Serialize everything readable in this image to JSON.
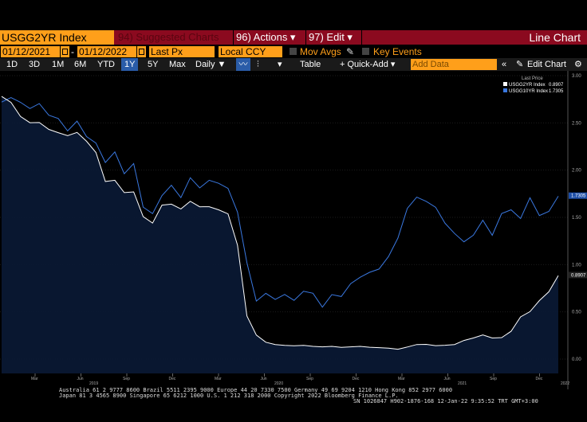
{
  "toolbar1": {
    "ticker": "USGG2YR Index",
    "suggested": "94) Suggested Charts",
    "actions": "96) Actions ▾",
    "edit": "97) Edit ▾",
    "chart_type": "Line Chart"
  },
  "toolbar2": {
    "start_date": "01/12/2021",
    "dash": "-",
    "end_date": "01/12/2022",
    "field": "Last Px",
    "currency": "Local CCY",
    "mov_avgs": "Mov Avgs",
    "key_events": "Key Events"
  },
  "toolbar3": {
    "periods": [
      "1D",
      "3D",
      "1M",
      "6M",
      "YTD",
      "1Y",
      "5Y",
      "Max"
    ],
    "selected_period": "1Y",
    "frequency": "Daily ▼",
    "table": "Table",
    "quick_add": "+ Quick-Add ▾",
    "add_data_placeholder": "Add Data",
    "edit_chart": "Edit Chart"
  },
  "legend": {
    "header": "Last Price",
    "items": [
      {
        "name": "USGG2YR Index",
        "value": "0.8907",
        "color": "#ffffff"
      },
      {
        "name": "USGG10YR Index",
        "value": "1.7305",
        "color": "#3a78e0"
      }
    ]
  },
  "chart_data": {
    "type": "line",
    "y_ticks": [
      "3.00",
      "2.50",
      "2.00",
      "1.50",
      "1.00",
      "0.50",
      "0.00"
    ],
    "ylim": [
      0,
      3
    ],
    "last_labels": [
      "1.7305",
      "0.8907"
    ],
    "x_month_labels": [
      "Mar",
      "Jun",
      "Sep",
      "Dec",
      "Mar",
      "Jun",
      "Sep",
      "Dec",
      "Mar",
      "Jun",
      "Sep",
      "Dec"
    ],
    "x_year_labels": [
      "2019",
      "2020",
      "2021",
      "2022"
    ],
    "series": [
      {
        "name": "USGG10YR Index",
        "color": "#3a78e0",
        "values": [
          2.72,
          2.75,
          2.7,
          2.65,
          2.72,
          2.6,
          2.55,
          2.4,
          2.5,
          2.35,
          2.3,
          2.1,
          2.2,
          1.95,
          2.05,
          1.6,
          1.55,
          1.75,
          1.85,
          1.7,
          1.9,
          1.8,
          1.9,
          1.88,
          1.82,
          1.55,
          1.0,
          0.6,
          0.7,
          0.65,
          0.7,
          0.62,
          0.7,
          0.68,
          0.55,
          0.7,
          0.68,
          0.8,
          0.85,
          0.9,
          0.95,
          1.1,
          1.3,
          1.6,
          1.7,
          1.65,
          1.6,
          1.45,
          1.35,
          1.25,
          1.3,
          1.45,
          1.3,
          1.55,
          1.6,
          1.5,
          1.7,
          1.5,
          1.55,
          1.73
        ]
      },
      {
        "name": "USGG2YR Index",
        "color": "#ffffff",
        "values": [
          2.78,
          2.7,
          2.55,
          2.5,
          2.52,
          2.45,
          2.4,
          2.35,
          2.38,
          2.3,
          2.2,
          1.9,
          1.9,
          1.75,
          1.75,
          1.5,
          1.45,
          1.65,
          1.65,
          1.58,
          1.65,
          1.6,
          1.62,
          1.6,
          1.55,
          1.2,
          0.45,
          0.25,
          0.18,
          0.16,
          0.15,
          0.14,
          0.14,
          0.13,
          0.13,
          0.14,
          0.13,
          0.13,
          0.13,
          0.12,
          0.12,
          0.12,
          0.11,
          0.13,
          0.15,
          0.15,
          0.14,
          0.15,
          0.16,
          0.2,
          0.22,
          0.25,
          0.22,
          0.23,
          0.3,
          0.45,
          0.5,
          0.6,
          0.7,
          0.89
        ]
      }
    ]
  },
  "footer": {
    "line1": "Australia 61 2 9777 8600  Brazil 5511 2395 9000  Europe 44 20 7330 7500  Germany 49 69 9204 1210  Hong Kong 852 2977 6000",
    "line2": "Japan 81 3 4565 8900        Singapore 65 6212 1000        U.S. 1 212 318 2000         Copyright 2022 Bloomberg Finance L.P.",
    "line3": "SN 1026847 H902-1876-168 12-Jan-22  9:35:52 TRT  GMT+3:00"
  }
}
